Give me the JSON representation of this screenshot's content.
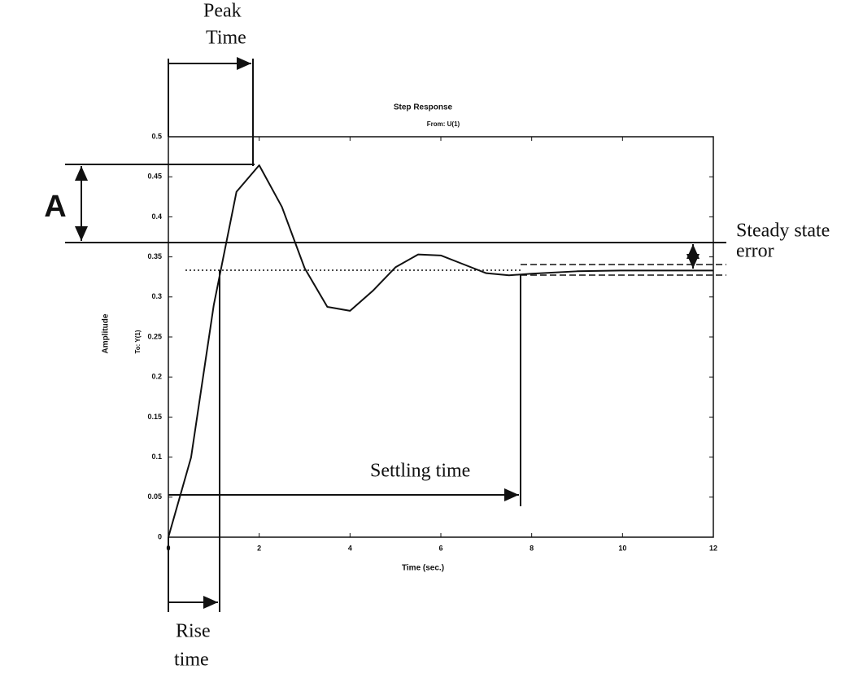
{
  "chart_data": {
    "type": "line",
    "title": "Step Response",
    "subtitle": "From: U(1)",
    "ylabel": "Amplitude",
    "ylabel2": "To: Y(1)",
    "xlabel": "Time (sec.)",
    "x": [
      0,
      0.5,
      1,
      1.5,
      2,
      2.5,
      3,
      3.5,
      4,
      4.5,
      5,
      5.5,
      6,
      6.5,
      7,
      7.5,
      8,
      9,
      10,
      11,
      12
    ],
    "series": [
      {
        "color": "#111111",
        "values": [
          0,
          0.0996,
          0.29,
          0.4313,
          0.4644,
          0.4124,
          0.336,
          0.2876,
          0.2826,
          0.3075,
          0.337,
          0.353,
          0.3518,
          0.3407,
          0.3296,
          0.327,
          0.329,
          0.332,
          0.333,
          0.333,
          0.333
        ]
      }
    ],
    "xlim": [
      0,
      12
    ],
    "xticks": [
      0,
      2,
      4,
      6,
      8,
      10,
      12
    ],
    "ylim": [
      0,
      0.5
    ],
    "yticks": [
      0,
      0.05,
      0.1,
      0.15,
      0.2,
      0.25,
      0.3,
      0.35,
      0.4,
      0.45,
      0.5
    ],
    "annotations": {
      "peak_time": [
        "Peak",
        "Time"
      ],
      "amplitude": "A",
      "steady_state_error": [
        "Steady state",
        "error"
      ],
      "settling_time": "Settling time",
      "rise_time": [
        "Rise",
        "time"
      ]
    }
  }
}
